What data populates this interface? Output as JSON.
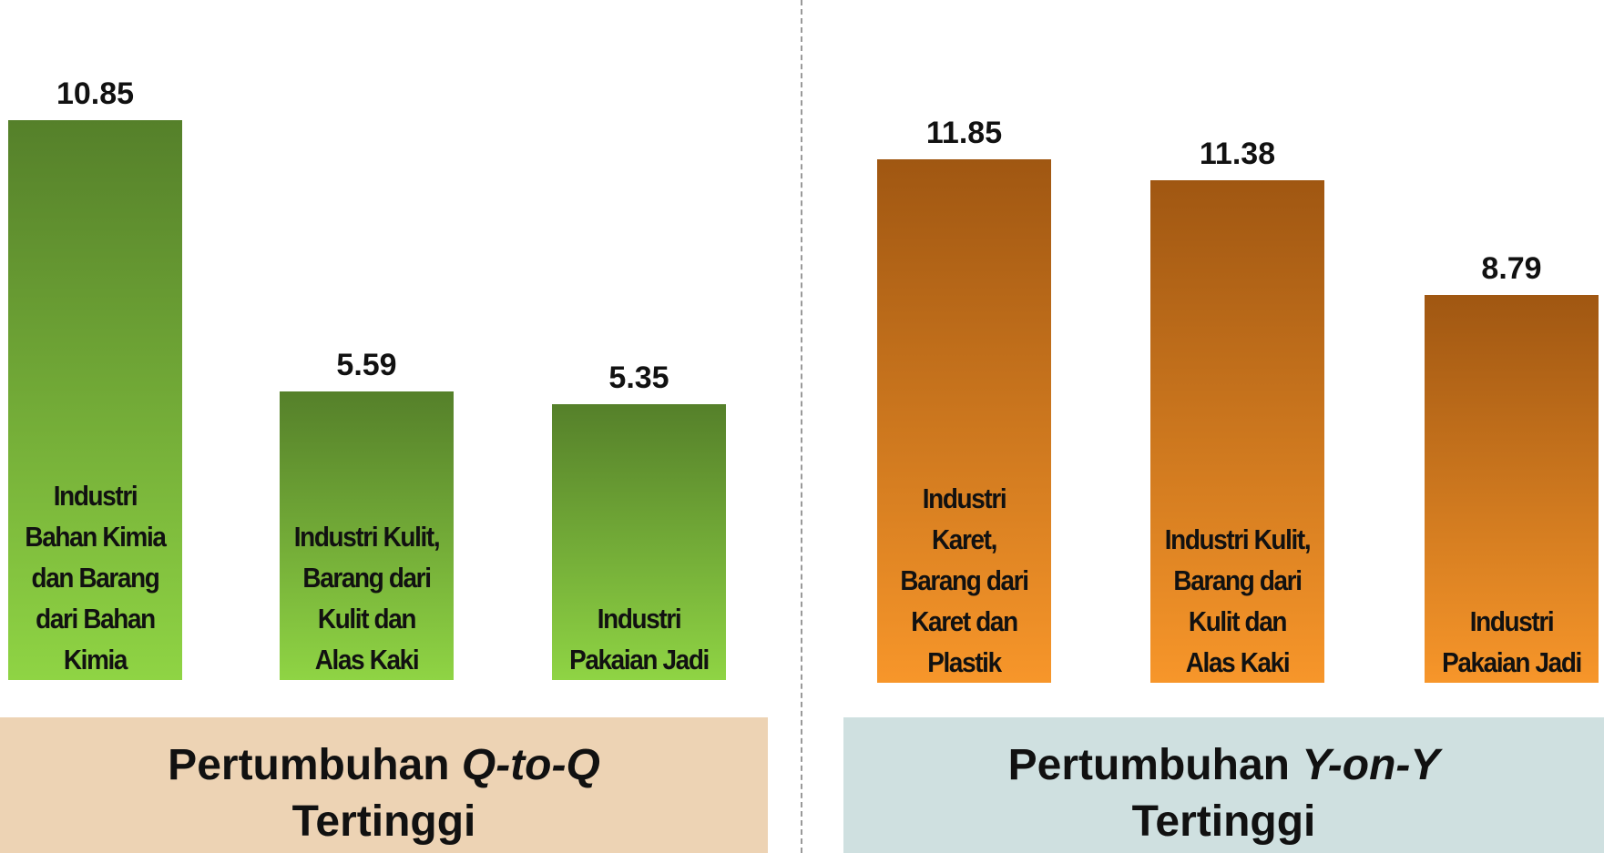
{
  "chart_data": [
    {
      "type": "bar",
      "title": {
        "prefix": "Pertumbuhan",
        "emphasis": "Q-to-Q",
        "suffix": "Tertinggi"
      },
      "categories": [
        "Industri Bahan Kimia dan Barang dari Bahan Kimia",
        "Industri Kulit, Barang dari Kulit dan Alas Kaki",
        "Industri Pakaian Jadi"
      ],
      "values": [
        10.85,
        5.59,
        5.35
      ],
      "color": [
        "#55802a",
        "#8fd444"
      ],
      "box_color": "#edd3b4",
      "ylim": [
        0,
        13.18
      ]
    },
    {
      "type": "bar",
      "title": {
        "prefix": "Pertumbuhan",
        "emphasis": "Y-on-Y",
        "suffix": "Tertinggi"
      },
      "categories": [
        "Industri Karet, Barang dari Karet dan Plastik",
        "Industri Kulit, Barang dari Kulit dan Alas Kaki",
        "Industri Pakaian Jadi"
      ],
      "values": [
        11.85,
        11.38,
        8.79
      ],
      "color": [
        "#a05712",
        "#f7962a"
      ],
      "box_color": "#cfe0e0",
      "ylim": [
        0,
        15.46
      ]
    }
  ]
}
